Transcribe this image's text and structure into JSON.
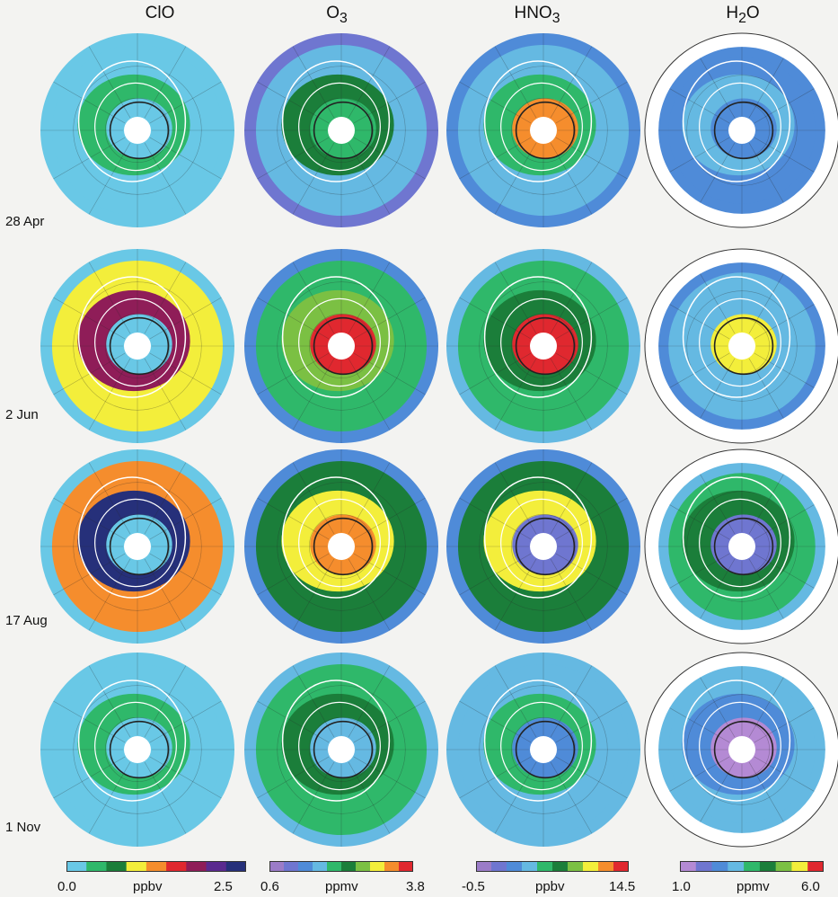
{
  "figure": {
    "columns": [
      {
        "id": "clo",
        "title_main": "ClO",
        "title_sub": ""
      },
      {
        "id": "o3",
        "title_main": "O",
        "title_sub": "3"
      },
      {
        "id": "hno3",
        "title_main": "HNO",
        "title_sub": "3"
      },
      {
        "id": "h2o",
        "title_main": "H",
        "title_sub": "2",
        "title_tail": "O"
      }
    ],
    "dates": [
      "28 Apr",
      "2 Jun",
      "17 Aug",
      "1 Nov"
    ],
    "colorbars": [
      {
        "min": "0.0",
        "unit": "ppbv",
        "max": "2.5",
        "colors": [
          "#69c8e6",
          "#2fb86a",
          "#1b7e3a",
          "#f3ee3b",
          "#f58d2d",
          "#e0282f",
          "#8f1d58",
          "#5a2a8f",
          "#26307a"
        ]
      },
      {
        "min": "0.6",
        "unit": "ppmv",
        "max": "3.8",
        "colors": [
          "#9b7cc8",
          "#6f76d0",
          "#4f8bd8",
          "#65b9e2",
          "#2fb86a",
          "#1b7e3a",
          "#7bc043",
          "#f3ee3b",
          "#f58d2d",
          "#e0282f"
        ]
      },
      {
        "min": "-0.5",
        "unit": "ppbv",
        "max": "14.5",
        "colors": [
          "#9b7cc8",
          "#6f76d0",
          "#4f8bd8",
          "#65b9e2",
          "#2fb86a",
          "#1b7e3a",
          "#7bc043",
          "#f3ee3b",
          "#f58d2d",
          "#e0282f"
        ]
      },
      {
        "min": "1.0",
        "unit": "ppmv",
        "max": "6.0",
        "colors": [
          "#b48ad4",
          "#6f76d0",
          "#4f8bd8",
          "#65b9e2",
          "#2fb86a",
          "#1b7e3a",
          "#7bc043",
          "#f3ee3b",
          "#e0282f"
        ]
      }
    ]
  },
  "chart_data": {
    "type": "heatmap",
    "variables": [
      "ClO",
      "O3",
      "HNO3",
      "H2O"
    ],
    "dates": [
      "28 Apr",
      "2 Jun",
      "17 Aug",
      "1 Nov"
    ],
    "units": [
      "ppbv",
      "ppmv",
      "ppbv",
      "ppmv"
    ],
    "ranges": [
      [
        0.0,
        2.5
      ],
      [
        0.6,
        3.8
      ],
      [
        -0.5,
        14.5
      ],
      [
        1.0,
        6.0
      ]
    ],
    "panels": [
      [
        {
          "core": 0.1,
          "ring": 0.3,
          "outer": 0.1
        },
        {
          "core": 2.0,
          "ring": 2.2,
          "outer": 1.2
        },
        {
          "core": 12.0,
          "ring": 6.0,
          "outer": 3.5
        },
        {
          "core": 2.3,
          "ring": 2.9,
          "outer": 2.4
        }
      ],
      [
        {
          "core": 0.2,
          "ring": 1.8,
          "outer": 0.1
        },
        {
          "core": 3.6,
          "ring": 2.6,
          "outer": 1.4
        },
        {
          "core": 13.0,
          "ring": 8.0,
          "outer": 4.0
        },
        {
          "core": 5.2,
          "ring": 3.2,
          "outer": 2.3
        }
      ],
      [
        {
          "core": 0.2,
          "ring": 2.3,
          "outer": 0.1
        },
        {
          "core": 3.4,
          "ring": 3.0,
          "outer": 1.5
        },
        {
          "core": 1.0,
          "ring": 11.0,
          "outer": 3.5
        },
        {
          "core": 1.8,
          "ring": 4.2,
          "outer": 2.8
        }
      ],
      [
        {
          "core": 0.1,
          "ring": 0.4,
          "outer": 0.1
        },
        {
          "core": 1.6,
          "ring": 2.4,
          "outer": 1.6
        },
        {
          "core": 3.0,
          "ring": 6.0,
          "outer": 4.5
        },
        {
          "core": 1.4,
          "ring": 2.6,
          "outer": 3.0
        }
      ]
    ]
  }
}
